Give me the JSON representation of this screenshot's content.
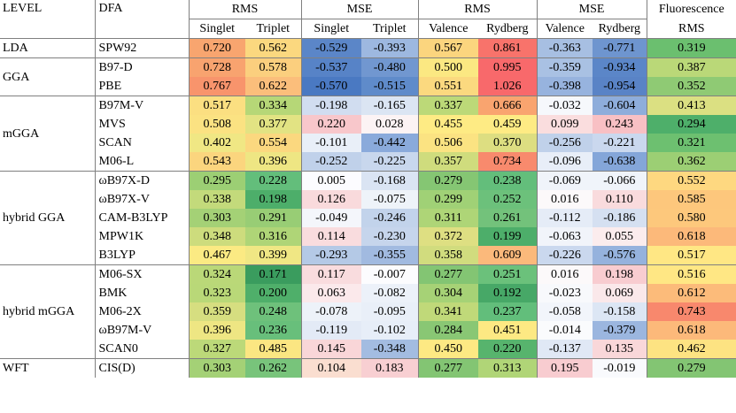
{
  "header": {
    "level": "LEVEL",
    "dfa": "DFA",
    "groups": [
      "RMS",
      "MSE",
      "RMS",
      "MSE"
    ],
    "fluor_top": "Fluorescence",
    "fluor_bottom": "RMS",
    "subheaders": [
      "Singlet",
      "Triplet",
      "Singlet",
      "Triplet",
      "Valence",
      "Rydberg",
      "Valence",
      "Rydberg"
    ]
  },
  "levels": [
    {
      "name": "LDA",
      "rows": 1
    },
    {
      "name": "GGA",
      "rows": 2
    },
    {
      "name": "mGGA",
      "rows": 4
    },
    {
      "name": "hybrid GGA",
      "rows": 5
    },
    {
      "name": "hybrid mGGA",
      "rows": 5
    },
    {
      "name": "WFT",
      "rows": 1
    }
  ],
  "rows": [
    {
      "dfa": "SPW92",
      "values": [
        "0.720",
        "0.562",
        "-0.529",
        "-0.393",
        "0.567",
        "0.861",
        "-0.363",
        "-0.771",
        "0.319"
      ],
      "colors": [
        "#f8a56f",
        "#fbd87f",
        "#5b86c8",
        "#9db8e0",
        "#fbd57e",
        "#f8736b",
        "#a7bfe2",
        "#6e95cf",
        "#6bbf6f"
      ]
    },
    {
      "dfa": "B97-D",
      "values": [
        "0.728",
        "0.578",
        "-0.537",
        "-0.480",
        "0.500",
        "0.995",
        "-0.359",
        "-0.934",
        "0.387"
      ],
      "colors": [
        "#f8a36f",
        "#fbcf7e",
        "#5783c7",
        "#7197d0",
        "#fbe882",
        "#f8696b",
        "#a9c1e3",
        "#5b86c8",
        "#bad878"
      ]
    },
    {
      "dfa": "PBE",
      "values": [
        "0.767",
        "0.622",
        "-0.570",
        "-0.515",
        "0.551",
        "1.026",
        "-0.398",
        "-0.954",
        "0.352"
      ],
      "colors": [
        "#f8946c",
        "#fbbe7b",
        "#4a79c2",
        "#5f8bca",
        "#fbd97f",
        "#f8696b",
        "#97b3de",
        "#5983c6",
        "#8fca74"
      ]
    },
    {
      "dfa": "B97M-V",
      "values": [
        "0.517",
        "0.334",
        "-0.198",
        "-0.165",
        "0.337",
        "0.666",
        "-0.032",
        "-0.604",
        "0.413"
      ],
      "colors": [
        "#fbdf81",
        "#b6d777",
        "#d1ddf0",
        "#dbe5f3",
        "#bcd978",
        "#f9a46f",
        "#f6f8fc",
        "#8eaddb",
        "#dbe082"
      ]
    },
    {
      "dfa": "MVS",
      "values": [
        "0.508",
        "0.377",
        "0.220",
        "0.028",
        "0.455",
        "0.459",
        "0.099",
        "0.243",
        "0.294"
      ],
      "colors": [
        "#fbe282",
        "#e2e383",
        "#f8c7cb",
        "#fcf3f4",
        "#feeb84",
        "#feeb84",
        "#faddde",
        "#f8c0c4",
        "#4eaf6a"
      ]
    },
    {
      "dfa": "SCAN",
      "values": [
        "0.402",
        "0.554",
        "-0.101",
        "-0.442",
        "0.506",
        "0.370",
        "-0.256",
        "-0.221",
        "0.321"
      ],
      "colors": [
        "#f0e784",
        "#fbd87f",
        "#e9eff8",
        "#8aaadb",
        "#fbe382",
        "#ddde81",
        "#c0d1ea",
        "#cad8ee",
        "#6dc070"
      ]
    },
    {
      "dfa": "M06-L",
      "values": [
        "0.543",
        "0.396",
        "-0.252",
        "-0.225",
        "0.357",
        "0.734",
        "-0.096",
        "-0.638",
        "0.362"
      ],
      "colors": [
        "#fbd57e",
        "#eee683",
        "#c0d1ea",
        "#c8d7ed",
        "#cfdc7d",
        "#f88a6d",
        "#e8eef8",
        "#84a6d9",
        "#9ccf74"
      ]
    },
    {
      "dfa": "ωB97X-D",
      "values": [
        "0.295",
        "0.228",
        "0.005",
        "-0.168",
        "0.279",
        "0.238",
        "-0.069",
        "-0.066",
        "0.552"
      ],
      "colors": [
        "#9ccf74",
        "#63be7b",
        "#fcfcff",
        "#dae4f3",
        "#85c673",
        "#63be7b",
        "#f0f4fa",
        "#f0f4fa",
        "#fed880"
      ]
    },
    {
      "dfa": "ωB97X-V",
      "values": [
        "0.338",
        "0.198",
        "0.126",
        "-0.075",
        "0.299",
        "0.252",
        "0.016",
        "0.110",
        "0.585"
      ],
      "colors": [
        "#c3da7b",
        "#4dae6a",
        "#f9dadc",
        "#eef3f9",
        "#a0d176",
        "#6cc17b",
        "#fcf9fa",
        "#f9dbdd",
        "#fdc77c"
      ]
    },
    {
      "dfa": "CAM-B3LYP",
      "values": [
        "0.303",
        "0.291",
        "-0.049",
        "-0.246",
        "0.311",
        "0.261",
        "-0.112",
        "-0.186",
        "0.580"
      ],
      "colors": [
        "#a4d176",
        "#98cd75",
        "#f4f6fb",
        "#c2d3eb",
        "#aed577",
        "#73c27b",
        "#e5ecf7",
        "#d5e0f1",
        "#fdc87c"
      ]
    },
    {
      "dfa": "MPW1K",
      "values": [
        "0.348",
        "0.316",
        "0.114",
        "-0.230",
        "0.372",
        "0.199",
        "-0.063",
        "0.055",
        "0.618"
      ],
      "colors": [
        "#cddc7d",
        "#afd577",
        "#f9dcde",
        "#c6d5ec",
        "#dedf82",
        "#4dae6a",
        "#f1f4fa",
        "#fbeced",
        "#fcb97a"
      ]
    },
    {
      "dfa": "B3LYP",
      "values": [
        "0.467",
        "0.399",
        "-0.293",
        "-0.355",
        "0.358",
        "0.609",
        "-0.226",
        "-0.576",
        "0.517"
      ],
      "colors": [
        "#fbea83",
        "#f0e784",
        "#b4c9e6",
        "#a1bae0",
        "#d1dc7e",
        "#fbb97b",
        "#cad8ee",
        "#95b2dd",
        "#ffe784"
      ]
    },
    {
      "dfa": "M06-SX",
      "values": [
        "0.324",
        "0.171",
        "0.117",
        "-0.007",
        "0.277",
        "0.251",
        "0.016",
        "0.198",
        "0.516"
      ],
      "colors": [
        "#bad878",
        "#3a9c5e",
        "#f9dcde",
        "#fcfcfe",
        "#83c573",
        "#6bc17b",
        "#fcf9fa",
        "#f8ccd0",
        "#ffe784"
      ]
    },
    {
      "dfa": "BMK",
      "values": [
        "0.323",
        "0.200",
        "0.063",
        "-0.082",
        "0.304",
        "0.192",
        "-0.023",
        "0.069",
        "0.612"
      ],
      "colors": [
        "#b9d878",
        "#4faf6a",
        "#fbe9eb",
        "#ecf1f9",
        "#a6d276",
        "#47a867",
        "#f8f9fc",
        "#fae8ea",
        "#fcbb7a"
      ]
    },
    {
      "dfa": "M06-2X",
      "values": [
        "0.359",
        "0.248",
        "-0.078",
        "-0.095",
        "0.341",
        "0.237",
        "-0.058",
        "-0.158",
        "0.743"
      ],
      "colors": [
        "#d6de80",
        "#6ec17b",
        "#edf2f9",
        "#e9eff8",
        "#c0d979",
        "#62be7b",
        "#f2f5fb",
        "#dce6f4",
        "#f8886d"
      ]
    },
    {
      "dfa": "ωB97M-V",
      "values": [
        "0.396",
        "0.236",
        "-0.119",
        "-0.102",
        "0.284",
        "0.451",
        "-0.014",
        "-0.379",
        "0.618"
      ],
      "colors": [
        "#eee683",
        "#68bf7b",
        "#e3eaf6",
        "#e7eef8",
        "#89c774",
        "#fde983",
        "#fafbfd",
        "#9bb6df",
        "#fcb97a"
      ]
    },
    {
      "dfa": "SCAN0",
      "values": [
        "0.327",
        "0.485",
        "0.145",
        "-0.348",
        "0.450",
        "0.220",
        "-0.137",
        "0.135",
        "0.462"
      ],
      "colors": [
        "#bcd979",
        "#fbe682",
        "#f9d6d8",
        "#a3bce1",
        "#fde983",
        "#57b46d",
        "#e0e8f5",
        "#f9d7d9",
        "#fde382"
      ]
    },
    {
      "dfa": "CIS(D)",
      "values": [
        "0.303",
        "0.262",
        "0.104",
        "0.183",
        "0.277",
        "0.313",
        "0.195",
        "-0.019",
        "0.279"
      ],
      "colors": [
        "#a4d176",
        "#78c47b",
        "#faded0",
        "#f8cfd2",
        "#83c573",
        "#b0d577",
        "#f8ccd0",
        "#f9fafd",
        "#83c573"
      ]
    }
  ]
}
